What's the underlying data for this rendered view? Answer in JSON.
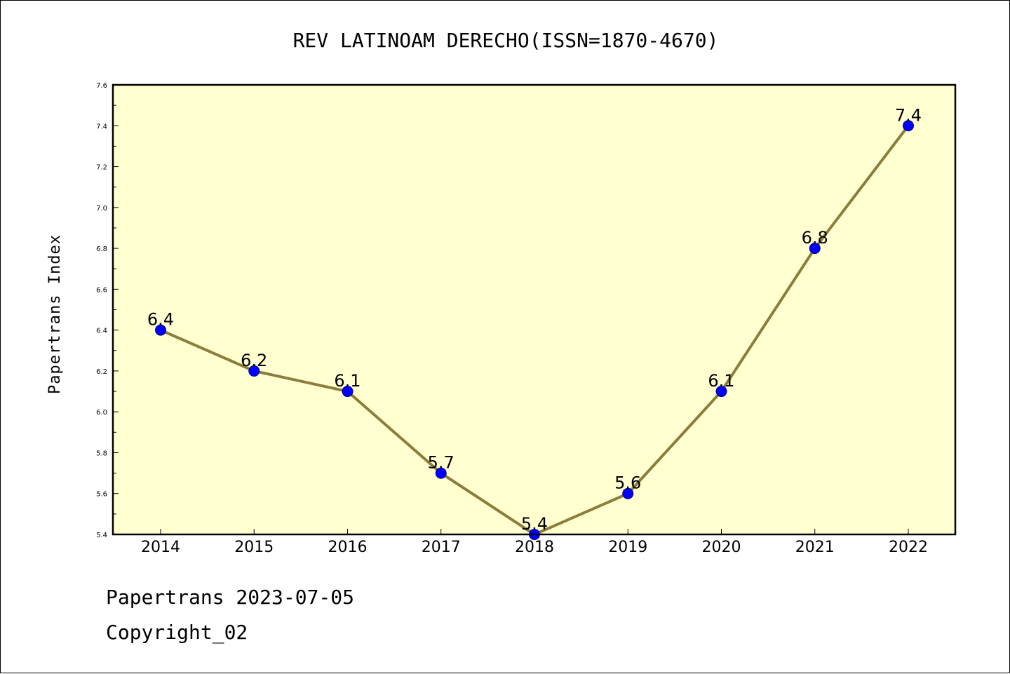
{
  "chart_data": {
    "type": "line",
    "title": "REV LATINOAM DERECHO(ISSN=1870-4670)",
    "xlabel": "",
    "ylabel": "Papertrans Index",
    "categories": [
      "2014",
      "2015",
      "2016",
      "2017",
      "2018",
      "2019",
      "2020",
      "2021",
      "2022"
    ],
    "series": [
      {
        "values": [
          6.4,
          6.2,
          6.1,
          5.7,
          5.4,
          5.6,
          6.1,
          6.8,
          7.4
        ]
      }
    ],
    "data_labels": [
      "6.4",
      "6.2",
      "6.1",
      "5.7",
      "5.4",
      "5.6",
      "6.1",
      "6.8",
      "7.4"
    ],
    "ylim": [
      5.4,
      7.6
    ],
    "yticks": [
      "5.4",
      "5.6",
      "5.8",
      "6.0",
      "6.2",
      "6.4",
      "6.6",
      "6.8",
      "7.0",
      "7.2",
      "7.4",
      "7.6"
    ],
    "grid": false,
    "legend": "none",
    "colors": {
      "plot_background": "#ffffd0",
      "line": "#8b7d3a",
      "marker": "#0000ff"
    }
  },
  "footer": {
    "date_line": "Papertrans 2023-07-05",
    "copyright": "Copyright_02"
  }
}
